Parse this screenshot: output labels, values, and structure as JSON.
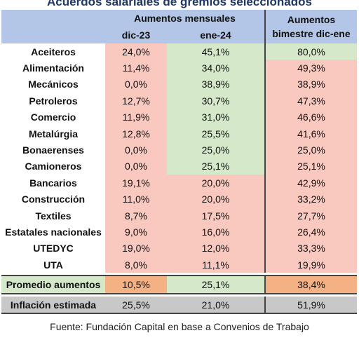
{
  "title": "Acuerdos salariales de gremios seleccionados",
  "header": {
    "group_monthly": "Aumentos mensuales",
    "col_dic": "dic-23",
    "col_ene": "ene-24",
    "bimestre_line1": "Aumentos",
    "bimestre_line2": "bimestre dic-ene"
  },
  "rows": [
    {
      "name": "Aceiteros",
      "dic": "24,0%",
      "ene": "45,1%",
      "bim": "80,0%"
    },
    {
      "name": "Alimentación",
      "dic": "11,4%",
      "ene": "34,0%",
      "bim": "49,3%"
    },
    {
      "name": "Mecánicos",
      "dic": "0,0%",
      "ene": "38,9%",
      "bim": "38,9%"
    },
    {
      "name": "Petroleros",
      "dic": "12,7%",
      "ene": "30,7%",
      "bim": "47,3%"
    },
    {
      "name": "Comercio",
      "dic": "11,9%",
      "ene": "31,0%",
      "bim": "46,6%"
    },
    {
      "name": "Metalúrgia",
      "dic": "12,8%",
      "ene": "25,5%",
      "bim": "41,6%"
    },
    {
      "name": "Bonaerenses",
      "dic": "0,0%",
      "ene": "25,0%",
      "bim": "25,0%"
    },
    {
      "name": "Camioneros",
      "dic": "0,0%",
      "ene": "25,1%",
      "bim": "25,1%"
    },
    {
      "name": "Bancarios",
      "dic": "19,1%",
      "ene": "20,0%",
      "bim": "42,9%"
    },
    {
      "name": "Construcción",
      "dic": "11,0%",
      "ene": "20,0%",
      "bim": "33,2%"
    },
    {
      "name": "Textiles",
      "dic": "8,7%",
      "ene": "17,5%",
      "bim": "27,7%"
    },
    {
      "name": "Estatales nacionales",
      "dic": "9,0%",
      "ene": "16,0%",
      "bim": "26,4%"
    },
    {
      "name": "UTEDYC",
      "dic": "19,0%",
      "ene": "12,0%",
      "bim": "33,3%"
    },
    {
      "name": "UTA",
      "dic": "8,0%",
      "ene": "11,1%",
      "bim": "19,9%"
    }
  ],
  "summary": {
    "name": "Promedio aumentos",
    "dic": "10,5%",
    "ene": "25,1%",
    "bim": "38,4%"
  },
  "inflation": {
    "name": "Inflación estimada",
    "dic": "25,5%",
    "ene": "21,0%",
    "bim": "51,9%"
  },
  "source": "Fuente: Fundación Capital en base a Convenios de Trabajo",
  "colors": {
    "pink": "#f9c9c0",
    "green": "#d5e8c9",
    "orange": "#f4b183",
    "gray": "#c8c8c8",
    "header": "#b4c6e7"
  }
}
